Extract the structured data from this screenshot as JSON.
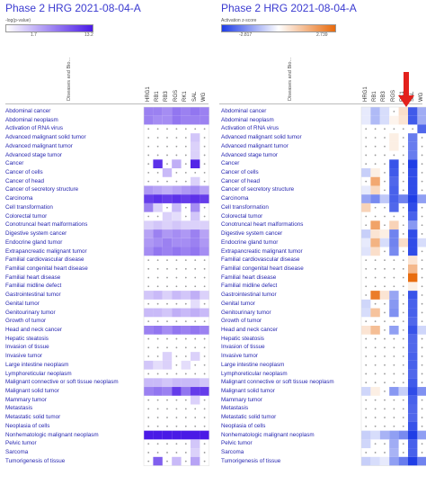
{
  "chart_data": [
    {
      "type": "heatmap",
      "title": "Phase 2 HRG 2021-08-04-A",
      "legend_label": "-log(p-value)",
      "legend_min": "1.7",
      "legend_max": "13.2",
      "row_header": "Diseases and Bio...",
      "columns": [
        "HRG1",
        "RB1",
        "RB3",
        "RGS",
        "RK1",
        "SAL",
        "WG"
      ],
      "rows": [
        "Abdominal cancer",
        "Abdominal neoplasm",
        "Activation of RNA virus",
        "Advanced malignant solid tumor",
        "Advanced malignant tumor",
        "Advanced stage tumor",
        "Cancer",
        "Cancer of cells",
        "Cancer of head",
        "Cancer of secretory structure",
        "Carcinoma",
        "Cell transformation",
        "Colorectal tumor",
        "Conotruncal heart malformations",
        "Digestive system cancer",
        "Endocrine gland tumor",
        "Extrapancreatic malignant tumor",
        "Familial cardiovascular disease",
        "Familial congenital heart disease",
        "Familial heart disease",
        "Familial midline defect",
        "Gastrointestinal tumor",
        "Genital tumor",
        "Genitourinary tumor",
        "Growth of tumor",
        "Head and neck cancer",
        "Hepatic steatosis",
        "Invasion of tissue",
        "Invasive tumor",
        "Large intestine neoplasm",
        "Lymphoreticular neoplasm",
        "Malignant connective or soft tissue neoplasm",
        "Malignant solid tumor",
        "Mammary tumor",
        "Metastasis",
        "Metastatic solid tumor",
        "Neoplasia of cells",
        "Nonhematologic malignant neoplasm",
        "Pelvic tumor",
        "Sarcoma",
        "Tumorigenesis of tissue"
      ],
      "values": [
        [
          0.55,
          0.55,
          0.5,
          0.6,
          0.55,
          0.6,
          0.55
        ],
        [
          0.55,
          0.5,
          0.5,
          0.6,
          0.55,
          0.55,
          0.55
        ],
        [
          0,
          0,
          0,
          0,
          0,
          0,
          0
        ],
        [
          0,
          0,
          0,
          0,
          0,
          0.25,
          0
        ],
        [
          0,
          0,
          0,
          0,
          0,
          0.2,
          0
        ],
        [
          0,
          0,
          0,
          0,
          0,
          0.2,
          0
        ],
        [
          0,
          0.9,
          0,
          0.35,
          0,
          0.95,
          0
        ],
        [
          0,
          0,
          0.3,
          0,
          0,
          0,
          0
        ],
        [
          0,
          0,
          0,
          0,
          0,
          0.2,
          0
        ],
        [
          0.45,
          0.4,
          0.35,
          0.4,
          0.45,
          0.5,
          0.4
        ],
        [
          0.85,
          0.9,
          0.85,
          0.9,
          0.85,
          0.9,
          0.85
        ],
        [
          0.55,
          0.2,
          0,
          0.3,
          0,
          0.5,
          0
        ],
        [
          0,
          0,
          0.2,
          0.15,
          0,
          0.25,
          0
        ],
        [
          0.2,
          0.25,
          0.2,
          0.25,
          0.2,
          0.2,
          0.2
        ],
        [
          0.4,
          0.55,
          0.45,
          0.5,
          0.45,
          0.55,
          0.4
        ],
        [
          0.45,
          0.5,
          0.55,
          0.5,
          0.5,
          0.55,
          0.45
        ],
        [
          0.5,
          0.6,
          0.55,
          0.6,
          0.55,
          0.6,
          0.5
        ],
        [
          0,
          0,
          0,
          0,
          0,
          0,
          0
        ],
        [
          0,
          0,
          0,
          0,
          0,
          0,
          0
        ],
        [
          0,
          0,
          0,
          0,
          0,
          0,
          0
        ],
        [
          0,
          0,
          0,
          0,
          0,
          0,
          0
        ],
        [
          0.25,
          0.3,
          0.2,
          0.3,
          0.25,
          0.35,
          0.2
        ],
        [
          0,
          0,
          0,
          0,
          0,
          0.15,
          0
        ],
        [
          0.3,
          0.3,
          0.25,
          0.35,
          0.3,
          0.35,
          0.3
        ],
        [
          0,
          0,
          0,
          0,
          0,
          0,
          0
        ],
        [
          0.55,
          0.6,
          0.5,
          0.6,
          0.55,
          0.6,
          0.55
        ],
        [
          0,
          0,
          0,
          0,
          0,
          0,
          0
        ],
        [
          0,
          0,
          0,
          0,
          0,
          0,
          0
        ],
        [
          0,
          0,
          0.2,
          0,
          0,
          0.2,
          0
        ],
        [
          0.25,
          0.15,
          0.2,
          0,
          0.15,
          0,
          0
        ],
        [
          0,
          0,
          0,
          0,
          0,
          0,
          0
        ],
        [
          0.3,
          0.3,
          0.25,
          0.3,
          0.3,
          0.3,
          0.25
        ],
        [
          0.55,
          0.6,
          0.55,
          0.85,
          0.6,
          0.85,
          0.85
        ],
        [
          0,
          0,
          0,
          0,
          0,
          0.2,
          0
        ],
        [
          0,
          0,
          0,
          0,
          0,
          0,
          0
        ],
        [
          0,
          0,
          0,
          0,
          0,
          0,
          0
        ],
        [
          0,
          0,
          0,
          0,
          0,
          0,
          0
        ],
        [
          1,
          1,
          1,
          1,
          1,
          1,
          1
        ],
        [
          0,
          0,
          0,
          0,
          0,
          0.25,
          0
        ],
        [
          0,
          0,
          0,
          0,
          0,
          0.2,
          0
        ],
        [
          0,
          0.7,
          0,
          0.3,
          0,
          0.4,
          0
        ]
      ],
      "color_low": "#ffffff",
      "color_high": "#4a1ae6",
      "dot_color": "#999999"
    },
    {
      "type": "heatmap",
      "title": "Phase 2 HRG 2021-08-04-A",
      "legend_label": "Activation z-score",
      "legend_min": "-2.817",
      "legend_max": "2.739",
      "row_header": "Diseases and Bio...",
      "columns": [
        "HRG1",
        "RB1",
        "RB3",
        "RGS",
        "RK1",
        "SAL",
        "WG"
      ],
      "highlight_column": "SAL",
      "rows": [
        "Abdominal cancer",
        "Abdominal neoplasm",
        "Activation of RNA virus",
        "Advanced malignant solid tumor",
        "Advanced malignant tumor",
        "Advanced stage tumor",
        "Cancer",
        "Cancer of cells",
        "Cancer of head",
        "Cancer of secretory structure",
        "Carcinoma",
        "Cell transformation",
        "Colorectal tumor",
        "Conotruncal heart malformations",
        "Digestive system cancer",
        "Endocrine gland tumor",
        "Extrapancreatic malignant tumor",
        "Familial cardiovascular disease",
        "Familial congenital heart disease",
        "Familial heart disease",
        "Familial midline defect",
        "Gastrointestinal tumor",
        "Genital tumor",
        "Genitourinary tumor",
        "Growth of tumor",
        "Head and neck cancer",
        "Hepatic steatosis",
        "Invasion of tissue",
        "Invasive tumor",
        "Large intestine neoplasm",
        "Lymphoreticular neoplasm",
        "Malignant connective or soft tissue neoplasm",
        "Malignant solid tumor",
        "Mammary tumor",
        "Metastasis",
        "Metastatic solid tumor",
        "Neoplasia of cells",
        "Nonhematologic malignant neoplasm",
        "Pelvic tumor",
        "Sarcoma",
        "Tumorigenesis of tissue"
      ],
      "values": [
        [
          -0.3,
          -1,
          -0.5,
          0,
          0.6,
          -2.4,
          -1.2
        ],
        [
          -0.3,
          -1,
          -0.5,
          0.2,
          0.5,
          -2.4,
          -1.2
        ],
        [
          0,
          0,
          0,
          0,
          0,
          0,
          -2.2
        ],
        [
          0,
          0,
          0,
          0.3,
          0,
          -1.9,
          0
        ],
        [
          0,
          0,
          0,
          0.3,
          0,
          -1.9,
          0
        ],
        [
          0,
          0,
          0,
          0,
          0,
          -1.9,
          0
        ],
        [
          0,
          0,
          0,
          -2.5,
          0,
          -2.8,
          0
        ],
        [
          -0.7,
          0.3,
          0,
          -2.4,
          0,
          -2.6,
          0
        ],
        [
          0,
          1.6,
          0,
          -2.2,
          0,
          -2.6,
          0
        ],
        [
          -0.3,
          0.7,
          0,
          -2.3,
          0,
          -2.6,
          0
        ],
        [
          -1.3,
          -1.7,
          -0.8,
          -2.3,
          -1.8,
          -2.8,
          -1.4
        ],
        [
          0.8,
          0,
          0,
          -2.2,
          0,
          -2.6,
          0
        ],
        [
          0,
          0,
          0,
          0,
          0,
          -2.3,
          0
        ],
        [
          0,
          1.7,
          0,
          0.8,
          0,
          -1.5,
          0
        ],
        [
          -0.7,
          0.5,
          0.3,
          -1.8,
          0,
          -2.6,
          0
        ],
        [
          -0.3,
          1.4,
          -0.5,
          -1.8,
          0.6,
          -2.6,
          -0.5
        ],
        [
          -0.4,
          0.6,
          0,
          -1.7,
          0,
          -2.6,
          0
        ],
        [
          0,
          0,
          0,
          0,
          0,
          0.5,
          0
        ],
        [
          0,
          0,
          0,
          0,
          0,
          1.3,
          0
        ],
        [
          0,
          0,
          0,
          0,
          0,
          2.7,
          0
        ],
        [
          0,
          0,
          0,
          0,
          0,
          0.3,
          0
        ],
        [
          0,
          2.4,
          0.5,
          -1.3,
          0,
          -2.5,
          0
        ],
        [
          -0.6,
          0,
          0,
          -1.5,
          0,
          -2.3,
          0
        ],
        [
          -0.5,
          1.1,
          0,
          -1.6,
          0,
          -2.3,
          0
        ],
        [
          0,
          0,
          0,
          0,
          0,
          -2.2,
          0
        ],
        [
          0.5,
          1.2,
          0,
          -1.4,
          0,
          -2.5,
          -0.6
        ],
        [
          0,
          0,
          0,
          0,
          0,
          -2.2,
          0
        ],
        [
          0,
          0,
          0,
          0,
          0,
          -2.2,
          0
        ],
        [
          0,
          0,
          0,
          0,
          0,
          -2.3,
          0
        ],
        [
          0,
          0,
          0,
          0,
          0,
          -2.3,
          0
        ],
        [
          0,
          0,
          0,
          0,
          0,
          -2.2,
          0
        ],
        [
          0,
          0,
          0,
          0,
          0,
          -2.4,
          0
        ],
        [
          -0.6,
          0.3,
          0,
          -1.5,
          -0.7,
          -2.6,
          -1.6
        ],
        [
          0,
          0,
          0,
          0,
          0,
          -2.3,
          0
        ],
        [
          0,
          0,
          0,
          0,
          0,
          -2.2,
          0
        ],
        [
          0,
          0,
          0,
          0,
          0,
          -2.2,
          0
        ],
        [
          0,
          0,
          0,
          0,
          0,
          -2.5,
          0
        ],
        [
          -0.7,
          -0.5,
          -1.1,
          -1.4,
          -1.7,
          -2.8,
          -1.4
        ],
        [
          -0.6,
          0,
          0,
          -1.2,
          0,
          -2.3,
          0
        ],
        [
          0,
          0,
          0,
          -1.1,
          0,
          -2.3,
          0
        ],
        [
          -0.7,
          -0.5,
          -0.3,
          -1.4,
          -1.9,
          -2.8,
          -1.8
        ]
      ],
      "color_neg": "#1f3de6",
      "color_pos": "#e86a0c",
      "dot_color": "#999999",
      "arrow_color": "#e3211c"
    }
  ]
}
